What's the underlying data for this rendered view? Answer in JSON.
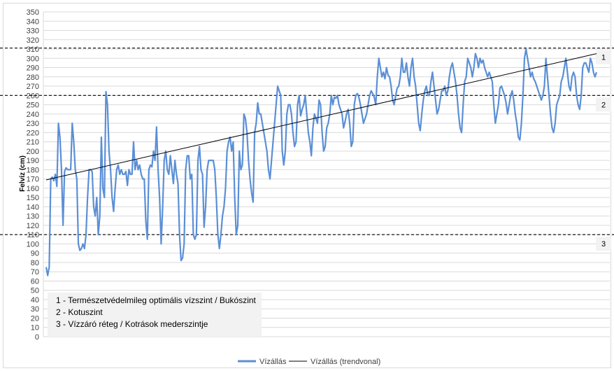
{
  "chart_data": {
    "type": "line",
    "ylabel": "Felvíz (cm)",
    "ylim": [
      0,
      350
    ],
    "ytick_step": 10,
    "grid": true,
    "legend_position": "bottom",
    "series": [
      {
        "name": "Vízállás",
        "color": "#5b8fd6",
        "values": [
          75,
          66,
          75,
          170,
          172,
          168,
          175,
          162,
          230,
          215,
          180,
          120,
          178,
          182,
          180,
          180,
          180,
          230,
          210,
          180,
          170,
          100,
          93,
          95,
          100,
          95,
          110,
          150,
          180,
          180,
          178,
          140,
          130,
          150,
          110,
          130,
          215,
          160,
          150,
          264,
          250,
          200,
          180,
          150,
          135,
          160,
          180,
          185,
          175,
          180,
          175,
          175,
          178,
          163,
          180,
          175,
          175,
          210,
          180,
          190,
          180,
          185,
          175,
          170,
          170,
          125,
          105,
          180,
          185,
          183,
          200,
          190,
          226,
          180,
          150,
          100,
          140,
          190,
          200,
          180,
          175,
          195,
          180,
          165,
          190,
          175,
          165,
          110,
          82,
          85,
          100,
          180,
          195,
          195,
          170,
          175,
          110,
          105,
          110,
          190,
          205,
          180,
          175,
          118,
          140,
          180,
          190,
          190,
          190,
          190,
          180,
          150,
          110,
          95,
          110,
          130,
          140,
          160,
          200,
          210,
          215,
          200,
          210,
          150,
          110,
          120,
          200,
          180,
          185,
          240,
          235,
          220,
          190,
          170,
          155,
          145,
          220,
          230,
          252,
          240,
          240,
          230,
          220,
          210,
          200,
          180,
          170,
          190,
          210,
          230,
          250,
          270,
          265,
          260,
          200,
          185,
          200,
          240,
          250,
          250,
          240,
          220,
          205,
          210,
          250,
          260,
          238,
          245,
          250,
          260,
          240,
          220,
          210,
          195,
          225,
          240,
          235,
          230,
          255,
          250,
          220,
          200,
          205,
          225,
          230,
          240,
          260,
          250,
          258,
          257,
          260,
          250,
          245,
          240,
          225,
          232,
          240,
          245,
          230,
          205,
          210,
          250,
          260,
          262,
          258,
          250,
          240,
          230,
          235,
          240,
          250,
          260,
          265,
          262,
          258,
          250,
          280,
          300,
          290,
          280,
          285,
          278,
          290,
          282,
          280,
          270,
          255,
          250,
          260,
          268,
          270,
          280,
          300,
          285,
          285,
          295,
          280,
          270,
          290,
          300,
          280,
          270,
          250,
          230,
          222,
          240,
          255,
          265,
          270,
          260,
          260,
          275,
          285,
          270,
          255,
          240,
          245,
          255,
          265,
          265,
          270,
          260,
          265,
          280,
          290,
          295,
          285,
          275,
          260,
          240,
          225,
          220,
          250,
          275,
          280,
          300,
          295,
          290,
          280,
          290,
          305,
          300,
          290,
          300,
          295,
          298,
          290,
          285,
          280,
          285,
          280,
          275,
          250,
          230,
          240,
          250,
          268,
          270,
          265,
          260,
          252,
          240,
          250,
          260,
          265,
          255,
          240,
          230,
          215,
          212,
          230,
          260,
          300,
          310,
          300,
          290,
          280,
          285,
          278,
          275,
          270,
          265,
          260,
          255,
          260,
          270,
          300,
          280,
          260,
          240,
          225,
          220,
          230,
          250,
          255,
          260,
          275,
          280,
          290,
          300,
          285,
          270,
          265,
          280,
          285,
          280,
          260,
          250,
          245,
          260,
          290,
          295,
          295,
          290,
          285,
          300,
          295,
          285,
          280,
          285
        ]
      },
      {
        "name": "Vízállás (trendvonal)",
        "color": "#000000",
        "start": 169,
        "end": 305
      }
    ],
    "reference_lines": [
      {
        "y": 311,
        "label": "1"
      },
      {
        "y": 260,
        "label": "2"
      },
      {
        "y": 110,
        "label": "3"
      }
    ]
  },
  "notes": [
    "1 - Természetvédelmileg optimális vízszint / Bukószint",
    "2 - Kotuszint",
    "3 - Vízzáró réteg / Kotrások mederszintje"
  ]
}
